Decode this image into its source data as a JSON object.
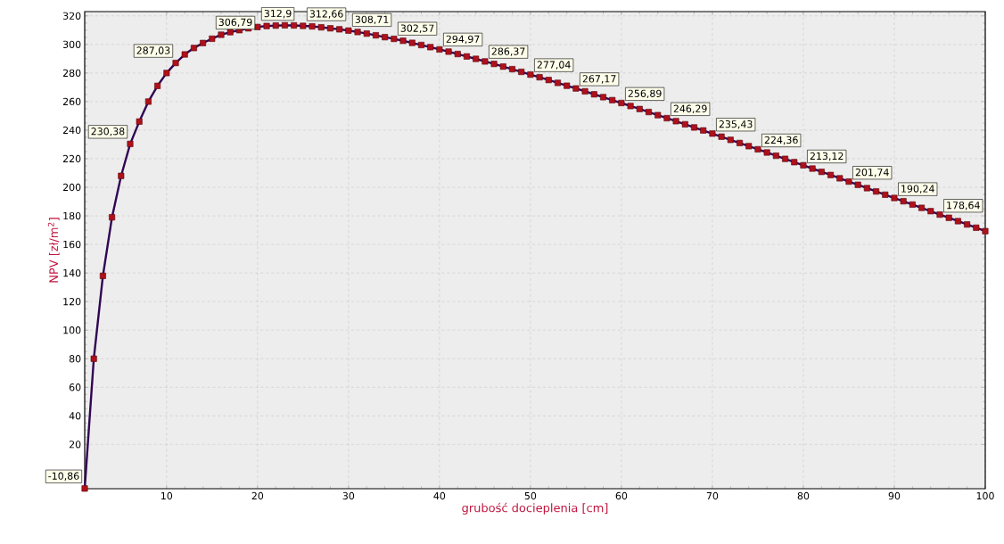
{
  "chart_data": {
    "type": "line",
    "xlabel": "grubość docieplenia [cm]",
    "ylabel": "NPV [zł/m$^{2}$]",
    "x": [
      1,
      2,
      3,
      4,
      5,
      6,
      7,
      8,
      9,
      10,
      11,
      12,
      13,
      14,
      15,
      16,
      17,
      18,
      19,
      20,
      21,
      22,
      23,
      24,
      25,
      26,
      27,
      28,
      29,
      30,
      31,
      32,
      33,
      34,
      35,
      36,
      37,
      38,
      39,
      40,
      41,
      42,
      43,
      44,
      45,
      46,
      47,
      48,
      49,
      50,
      51,
      52,
      53,
      54,
      55,
      56,
      57,
      58,
      59,
      60,
      61,
      62,
      63,
      64,
      65,
      66,
      67,
      68,
      69,
      70,
      71,
      72,
      73,
      74,
      75,
      76,
      77,
      78,
      79,
      80,
      81,
      82,
      83,
      84,
      85,
      86,
      87,
      88,
      89,
      90,
      91,
      92,
      93,
      94,
      95,
      96,
      97,
      98,
      99,
      100
    ],
    "series": [
      {
        "color": "#b0101a",
        "values": [
          -10.86,
          80,
          138,
          179,
          208,
          230.38,
          246,
          260,
          271,
          280,
          287.03,
          293,
          297.5,
          301,
          304,
          306.79,
          308.6,
          310,
          311.3,
          312.2,
          312.9,
          313.2,
          313.4,
          313.3,
          313.0,
          312.66,
          312.0,
          311.3,
          310.6,
          309.7,
          308.71,
          307.6,
          306.4,
          305.1,
          303.9,
          302.57,
          301.1,
          299.6,
          298.1,
          296.5,
          294.97,
          293.3,
          291.6,
          289.9,
          288.1,
          286.37,
          284.5,
          282.7,
          280.8,
          278.9,
          277.04,
          275.1,
          273.1,
          271.1,
          269.2,
          267.17,
          265.1,
          263.1,
          261.0,
          259.0,
          256.89,
          254.8,
          252.7,
          250.5,
          248.4,
          246.29,
          244.1,
          241.9,
          239.8,
          237.6,
          235.43,
          233.2,
          231.0,
          228.8,
          226.6,
          224.36,
          222.1,
          219.9,
          217.6,
          215.4,
          213.12,
          210.8,
          208.6,
          206.3,
          204.0,
          201.74,
          199.4,
          197.1,
          194.8,
          192.5,
          190.24,
          187.9,
          185.6,
          183.3,
          180.9,
          178.64,
          176.3,
          174.0,
          171.7,
          169.3
        ],
        "value_labels": [
          "-10,86",
          null,
          null,
          null,
          null,
          "230,38",
          null,
          null,
          null,
          null,
          "287,03",
          null,
          null,
          null,
          null,
          "306,79",
          null,
          null,
          null,
          null,
          "312,9",
          null,
          null,
          null,
          null,
          "312,66",
          null,
          null,
          null,
          null,
          "308,71",
          null,
          null,
          null,
          null,
          "302,57",
          null,
          null,
          null,
          null,
          "294,97",
          null,
          null,
          null,
          null,
          "286,37",
          null,
          null,
          null,
          null,
          "277,04",
          null,
          null,
          null,
          null,
          "267,17",
          null,
          null,
          null,
          null,
          "256,89",
          null,
          null,
          null,
          null,
          "246,29",
          null,
          null,
          null,
          null,
          "235,43",
          null,
          null,
          null,
          null,
          "224,36",
          null,
          null,
          null,
          null,
          "213,12",
          null,
          null,
          null,
          null,
          "201,74",
          null,
          null,
          null,
          null,
          "190,24",
          null,
          null,
          null,
          null,
          "178,64",
          null,
          null,
          null,
          null
        ]
      }
    ],
    "xlim": [
      1,
      100
    ],
    "ylim": [
      -11,
      323
    ],
    "xticks": [
      10,
      20,
      30,
      40,
      50,
      60,
      70,
      80,
      90,
      100
    ],
    "yticks": [
      20,
      40,
      60,
      80,
      100,
      120,
      140,
      160,
      180,
      200,
      220,
      240,
      260,
      280,
      300,
      320
    ],
    "grid": true,
    "marker": "square",
    "line_style": "solid"
  }
}
